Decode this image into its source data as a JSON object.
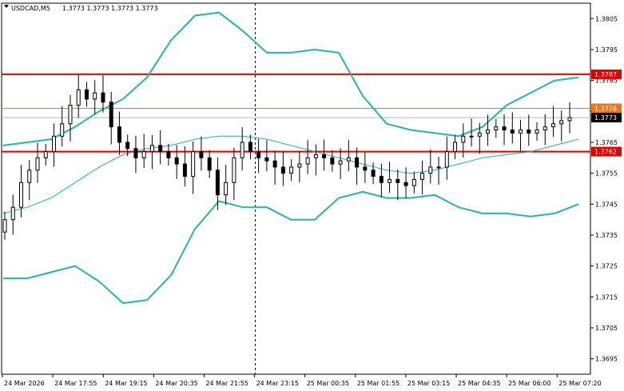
{
  "header": {
    "symbol": "USDCAD,M5",
    "ohlc": "1.3773 1.3773 1.3773 1.3773"
  },
  "colors": {
    "candle": "#000000",
    "bollinger": "#26b5a8",
    "ma": "#20b2aa",
    "support_resistance": "#e00000",
    "orange_level": "#e8781e",
    "price_label_bg": "#000000",
    "grid_vline": "#000000"
  },
  "price_labels": [
    {
      "name": "resistance",
      "text": "1.3787",
      "kind": "red"
    },
    {
      "name": "orange-level",
      "text": "1.3776",
      "kind": "orange"
    },
    {
      "name": "current-price",
      "text": "1.3773",
      "kind": "black"
    },
    {
      "name": "support",
      "text": "1.3762",
      "kind": "red"
    }
  ],
  "chart_data": {
    "type": "candlestick",
    "instrument": "USDCAD",
    "timeframe": "M5",
    "ylim": [
      1.369,
      1.381
    ],
    "y_ticks": [
      "1.3805",
      "1.3795",
      "1.3785",
      "1.3775",
      "1.3765",
      "1.3755",
      "1.3745",
      "1.3735",
      "1.3725",
      "1.3715",
      "1.3705",
      "1.3695"
    ],
    "x_ticks": [
      "24 Mar 2026",
      "24 Mar 17:55",
      "24 Mar 19:15",
      "24 Mar 20:35",
      "24 Mar 21:55",
      "24 Mar 23:15",
      "25 Mar 00:35",
      "25 Mar 01:55",
      "25 Mar 03:15",
      "25 Mar 04:35",
      "25 Mar 06:00",
      "25 Mar 07:20"
    ],
    "horizontal_lines": [
      {
        "value": 1.3787,
        "style": "red"
      },
      {
        "value": 1.3776,
        "style": "orange"
      },
      {
        "value": 1.3762,
        "style": "red"
      }
    ],
    "current_price": 1.3773,
    "vertical_marker": "24 Mar 23:15",
    "bollinger_upper": [
      1.3764,
      1.3765,
      1.3766,
      1.377,
      1.3775,
      1.3779,
      1.3786,
      1.3798,
      1.3806,
      1.3807,
      1.3801,
      1.3794,
      1.3794,
      1.3795,
      1.3794,
      1.378,
      1.3771,
      1.3769,
      1.3768,
      1.3767,
      1.377,
      1.3777,
      1.3781,
      1.3785,
      1.3786
    ],
    "bollinger_lower": [
      1.3721,
      1.3721,
      1.3723,
      1.3725,
      1.372,
      1.3713,
      1.3714,
      1.3722,
      1.3737,
      1.3746,
      1.3744,
      1.3744,
      1.374,
      1.374,
      1.3747,
      1.3749,
      1.3747,
      1.3747,
      1.3748,
      1.3744,
      1.3742,
      1.3742,
      1.3741,
      1.3742,
      1.3745
    ],
    "moving_average": [
      1.3742,
      1.3744,
      1.3747,
      1.3752,
      1.3757,
      1.3761,
      1.3763,
      1.3764,
      1.3766,
      1.3767,
      1.3767,
      1.3766,
      1.3764,
      1.3762,
      1.376,
      1.3758,
      1.3756,
      1.3755,
      1.3756,
      1.3758,
      1.376,
      1.3761,
      1.3762,
      1.3764,
      1.3766
    ],
    "closes": [
      1.374,
      1.3744,
      1.3752,
      1.3756,
      1.376,
      1.3762,
      1.3767,
      1.3771,
      1.3777,
      1.3782,
      1.3779,
      1.3781,
      1.3778,
      1.377,
      1.3765,
      1.3763,
      1.376,
      1.3762,
      1.3764,
      1.3762,
      1.376,
      1.3758,
      1.3754,
      1.3762,
      1.376,
      1.3756,
      1.3748,
      1.3752,
      1.376,
      1.3765,
      1.3762,
      1.376,
      1.3759,
      1.3757,
      1.3755,
      1.3757,
      1.3758,
      1.376,
      1.3761,
      1.376,
      1.3758,
      1.3759,
      1.376,
      1.3757,
      1.3756,
      1.3754,
      1.3752,
      1.3753,
      1.3752,
      1.3751,
      1.3753,
      1.3755,
      1.3757,
      1.3757,
      1.3762,
      1.3765,
      1.3767,
      1.3767,
      1.3768,
      1.3769,
      1.377,
      1.3769,
      1.3768,
      1.3769,
      1.3768,
      1.3769,
      1.377,
      1.3771,
      1.3772,
      1.3773
    ]
  }
}
